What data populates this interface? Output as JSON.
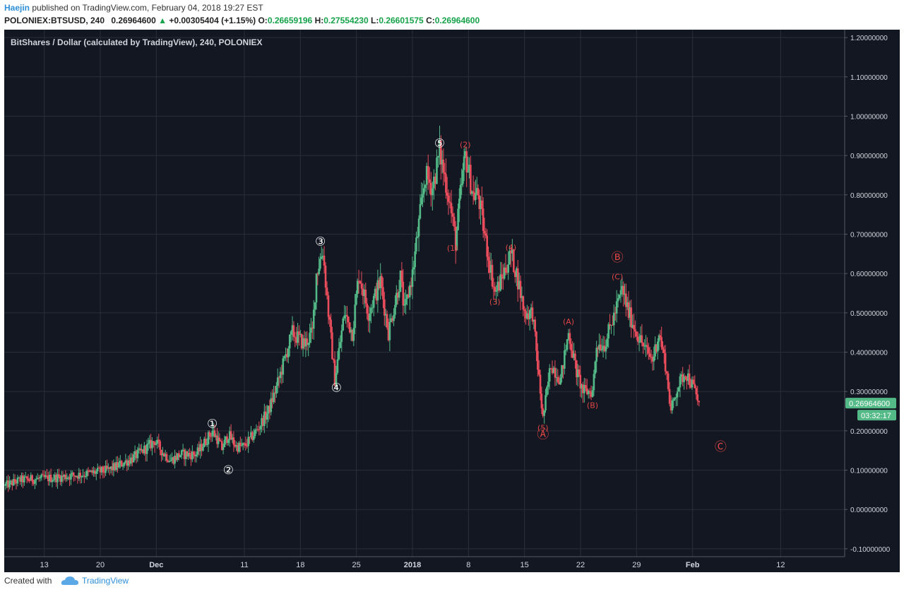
{
  "header": {
    "author": "Haejin",
    "published_text": "published on TradingView.com, February 04, 2018 19:27 EST",
    "symbol": "POLONIEX:BTSUSD, 240",
    "last": "0.26964600",
    "change": "+0.00305404 (+1.15%)",
    "o_label": "O:",
    "o_value": "0.26659196",
    "h_label": "H:",
    "h_value": "0.27554230",
    "l_label": "L:",
    "l_value": "0.26601575",
    "c_label": "C:",
    "c_value": "0.26964600"
  },
  "footer": {
    "created_with": "Created with",
    "brand": "TradingView"
  },
  "colors": {
    "background": "#131722",
    "up": "#53b987",
    "down": "#eb4d5c",
    "grid": "#2a2e39",
    "axis_text": "#d1d4dc",
    "wave_white": "#ffffff",
    "wave_red": "#e04545"
  },
  "chart_data": {
    "type": "candlestick",
    "title": "BitShares / Dollar (calculated by TradingView), 240, POLONIEX",
    "ylim": [
      -0.12,
      1.22
    ],
    "y_ticks": [
      "1.20000000",
      "1.10000000",
      "1.00000000",
      "0.90000000",
      "0.80000000",
      "0.70000000",
      "0.60000000",
      "0.50000000",
      "0.40000000",
      "0.30000000",
      "0.20000000",
      "0.10000000",
      "0.00000000",
      "-0.10000000"
    ],
    "y_tick_values": [
      1.2,
      1.1,
      1.0,
      0.9,
      0.8,
      0.7,
      0.6,
      0.5,
      0.4,
      0.3,
      0.2,
      0.1,
      0.0,
      -0.1
    ],
    "x_ticks": [
      "13",
      "20",
      "Dec",
      "11",
      "18",
      "25",
      "2018",
      "8",
      "15",
      "22",
      "29",
      "Feb",
      "12"
    ],
    "x_tick_bold": [
      false,
      false,
      true,
      false,
      false,
      false,
      true,
      false,
      false,
      false,
      false,
      true,
      false
    ],
    "x_tick_positions": [
      13,
      20,
      27,
      38,
      45,
      52,
      59,
      66,
      73,
      80,
      87,
      94,
      105
    ],
    "x_range": [
      8,
      113
    ],
    "price_path": [
      [
        8,
        0.06
      ],
      [
        10,
        0.075
      ],
      [
        14,
        0.08
      ],
      [
        18,
        0.09
      ],
      [
        21,
        0.1
      ],
      [
        24,
        0.13
      ],
      [
        26,
        0.16
      ],
      [
        26.8,
        0.175
      ],
      [
        27.8,
        0.145
      ],
      [
        28.8,
        0.125
      ],
      [
        30,
        0.14
      ],
      [
        32,
        0.14
      ],
      [
        33,
        0.17
      ],
      [
        34,
        0.2
      ],
      [
        34.6,
        0.18
      ],
      [
        35.2,
        0.155
      ],
      [
        36,
        0.19
      ],
      [
        37,
        0.16
      ],
      [
        38,
        0.16
      ],
      [
        39.5,
        0.2
      ],
      [
        41,
        0.25
      ],
      [
        42,
        0.31
      ],
      [
        43,
        0.38
      ],
      [
        44,
        0.45
      ],
      [
        45.5,
        0.42
      ],
      [
        46.5,
        0.45
      ],
      [
        47,
        0.6
      ],
      [
        47.8,
        0.66
      ],
      [
        48.5,
        0.5
      ],
      [
        49.3,
        0.33
      ],
      [
        50.5,
        0.5
      ],
      [
        51.5,
        0.45
      ],
      [
        52.3,
        0.6
      ],
      [
        53.5,
        0.5
      ],
      [
        55,
        0.58
      ],
      [
        56,
        0.45
      ],
      [
        57.5,
        0.59
      ],
      [
        58,
        0.5
      ],
      [
        59,
        0.6
      ],
      [
        60.6,
        0.85
      ],
      [
        61.5,
        0.82
      ],
      [
        62.4,
        0.91
      ],
      [
        63.5,
        0.8
      ],
      [
        64.4,
        0.68
      ],
      [
        65,
        0.8
      ],
      [
        65.6,
        0.9
      ],
      [
        66.6,
        0.8
      ],
      [
        67.2,
        0.8
      ],
      [
        68,
        0.7
      ],
      [
        69.3,
        0.55
      ],
      [
        70,
        0.58
      ],
      [
        71.3,
        0.65
      ],
      [
        72,
        0.6
      ],
      [
        73,
        0.5
      ],
      [
        74,
        0.5
      ],
      [
        75.3,
        0.23
      ],
      [
        76.3,
        0.37
      ],
      [
        77.5,
        0.33
      ],
      [
        78.5,
        0.45
      ],
      [
        79.5,
        0.35
      ],
      [
        80.3,
        0.3
      ],
      [
        81.5,
        0.3
      ],
      [
        82,
        0.42
      ],
      [
        83,
        0.42
      ],
      [
        84,
        0.48
      ],
      [
        85.2,
        0.56
      ],
      [
        86,
        0.5
      ],
      [
        87,
        0.45
      ],
      [
        88,
        0.41
      ],
      [
        89,
        0.38
      ],
      [
        89.8,
        0.45
      ],
      [
        90.6,
        0.37
      ],
      [
        91.3,
        0.25
      ],
      [
        92.1,
        0.31
      ],
      [
        93.1,
        0.35
      ],
      [
        94.1,
        0.31
      ],
      [
        94.8,
        0.27
      ]
    ],
    "last_price": "0.26964600",
    "countdown": "03:32:17",
    "annotations": [
      {
        "label": "①",
        "x": 34.0,
        "y": 0.215,
        "color": "white"
      },
      {
        "label": "②",
        "x": 36.0,
        "y": 0.097,
        "color": "white"
      },
      {
        "label": "③",
        "x": 47.5,
        "y": 0.678,
        "color": "white"
      },
      {
        "label": "④",
        "x": 49.5,
        "y": 0.307,
        "color": "white"
      },
      {
        "label": "⑤",
        "x": 62.4,
        "y": 0.928,
        "color": "white"
      },
      {
        "label": "(2)",
        "x": 65.6,
        "y": 0.928,
        "color": "red"
      },
      {
        "label": "(1)",
        "x": 64.0,
        "y": 0.665,
        "color": "red"
      },
      {
        "label": "(4)",
        "x": 71.3,
        "y": 0.667,
        "color": "red"
      },
      {
        "label": "(3)",
        "x": 69.3,
        "y": 0.528,
        "color": "red"
      },
      {
        "label": "(A)",
        "x": 78.5,
        "y": 0.478,
        "color": "red"
      },
      {
        "label": "(5)",
        "x": 75.3,
        "y": 0.208,
        "color": "red"
      },
      {
        "label": "Ⓐ",
        "x": 75.3,
        "y": 0.188,
        "color": "red"
      },
      {
        "label": "(B)",
        "x": 81.5,
        "y": 0.265,
        "color": "red"
      },
      {
        "label": "Ⓑ",
        "x": 84.6,
        "y": 0.638,
        "color": "red"
      },
      {
        "label": "(C)",
        "x": 84.6,
        "y": 0.592,
        "color": "red"
      },
      {
        "label": "Ⓒ",
        "x": 97.5,
        "y": 0.157,
        "color": "red"
      }
    ]
  }
}
